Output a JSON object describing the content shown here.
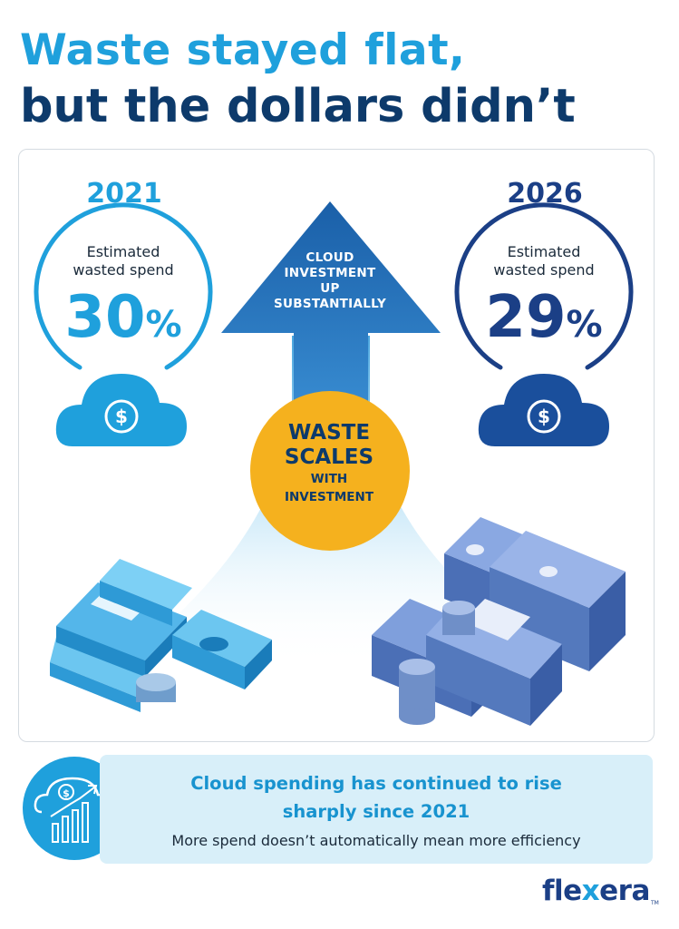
{
  "title": {
    "line1": "Waste stayed flat,",
    "line2": "but the dollars didn’t"
  },
  "left": {
    "year": "2021",
    "label_line1": "Estimated",
    "label_line2": "wasted spend",
    "value": "30",
    "unit": "%"
  },
  "right": {
    "year": "2026",
    "label_line1": "Estimated",
    "label_line2": "wasted spend",
    "value": "29",
    "unit": "%"
  },
  "arrow": {
    "line1": "CLOUD",
    "line2": "INVESTMENT",
    "line3": "UP",
    "line4": "SUBSTANTIALLY"
  },
  "badge": {
    "line1": "WASTE",
    "line2": "SCALES",
    "line3": "WITH",
    "line4": "INVESTMENT"
  },
  "footer": {
    "headline_line1": "Cloud spending has continued to rise",
    "headline_line2": "sharply since 2021",
    "subtext": "More spend doesn’t automatically mean more efficiency"
  },
  "brand": {
    "name_part1": "fle",
    "name_x": "x",
    "name_part2": "era",
    "tm": "TM"
  },
  "colors": {
    "light_blue": "#1fa0dc",
    "dark_blue": "#0d3a6b",
    "mid_blue": "#1a4f9c",
    "yellow": "#f5b11e",
    "cash_light": "#4fb3e8",
    "cash_dark": "#5b7fc4"
  }
}
